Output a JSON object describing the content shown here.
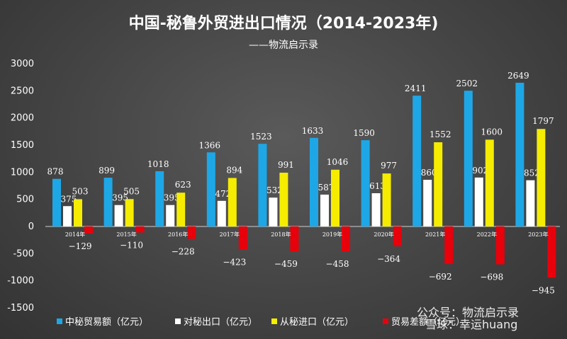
{
  "watermark": {
    "line1": "公众号：物流启示录",
    "line2": "雪球：幸运huang"
  },
  "chart_data": {
    "type": "bar",
    "title": "中国-秘鲁外贸进出口情况（2014-2023年)",
    "subtitle": "——物流启示录",
    "categories": [
      "2014年",
      "2015年",
      "2016年",
      "2017年",
      "2018年",
      "2019年",
      "2020年",
      "2021年",
      "2022年",
      "2023年"
    ],
    "series": [
      {
        "name": "中秘贸易额（亿元）",
        "color": "#1ea7e6",
        "values": [
          878,
          899,
          1018,
          1366,
          1523,
          1633,
          1590,
          2411,
          2502,
          2649
        ]
      },
      {
        "name": "对秘出口（亿元）",
        "color": "#ffffff",
        "values": [
          375,
          395,
          395,
          472,
          532,
          587,
          613,
          860,
          902,
          852
        ]
      },
      {
        "name": "从秘进口（亿元）",
        "color": "#f5ec00",
        "values": [
          503,
          505,
          623,
          894,
          991,
          1046,
          977,
          1552,
          1600,
          1797
        ]
      },
      {
        "name": "贸易差额（亿元）",
        "color": "#e8000b",
        "values": [
          -129,
          -110,
          -228,
          -423,
          -459,
          -458,
          -364,
          -692,
          -698,
          -945
        ]
      }
    ],
    "ylim": [
      -1500,
      3000
    ],
    "yticks": [
      -1500,
      -1000,
      -500,
      0,
      500,
      1000,
      1500,
      2000,
      2500,
      3000
    ],
    "grid": false,
    "legend": "bottom"
  }
}
